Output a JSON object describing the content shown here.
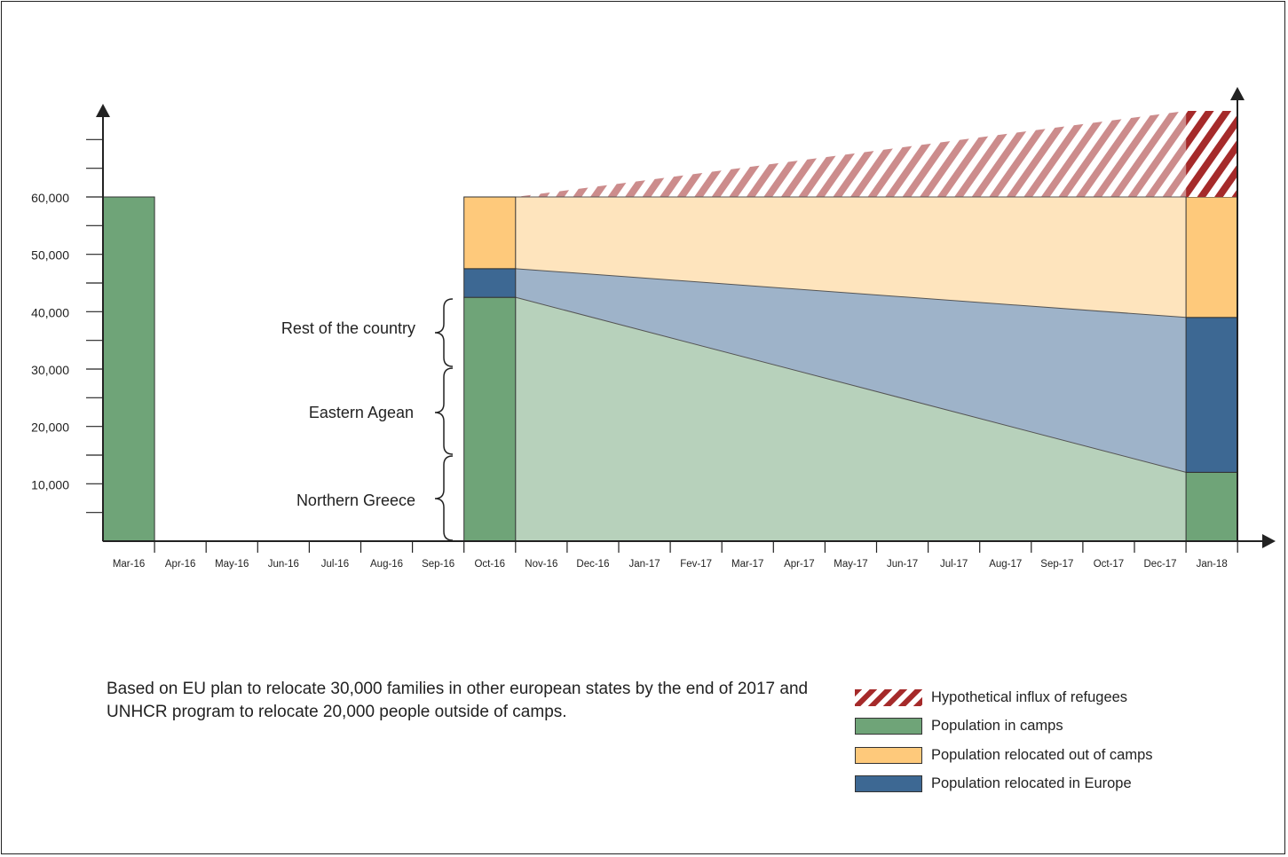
{
  "chart_data": {
    "type": "area",
    "title": "",
    "xlabel": "",
    "ylabel": "",
    "x": [
      "Mar-16",
      "Apr-16",
      "May-16",
      "Jun-16",
      "Jul-16",
      "Aug-16",
      "Sep-16",
      "Oct-16",
      "Nov-16",
      "Dec-16",
      "Jan-17",
      "Fev-17",
      "Mar-17",
      "Apr-17",
      "May-17",
      "Jun-17",
      "Jul-17",
      "Aug-17",
      "Sep-17",
      "Oct-17",
      "Dec-17",
      "Jan-18"
    ],
    "y_ticks": [
      "60,000",
      "50,000",
      "40,000",
      "30,000",
      "20,000",
      "10,000"
    ],
    "y_tick_values": [
      60000,
      50000,
      40000,
      30000,
      20000,
      10000
    ],
    "ylim": [
      0,
      75000
    ],
    "grid": false,
    "regions": [
      {
        "label": "Rest of the country",
        "range": [
          30000,
          42000
        ]
      },
      {
        "label": "Eastern Agean",
        "range": [
          15000,
          30000
        ]
      },
      {
        "label": "Northern Greece",
        "range": [
          0,
          15000
        ]
      }
    ],
    "bars": [
      {
        "x": "Mar-16",
        "in_camps": 60000,
        "relocated_europe": 0,
        "relocated_out_of_camps": 0,
        "influx": 0
      },
      {
        "x": "Oct-16",
        "in_camps": 42500,
        "relocated_europe": 5000,
        "relocated_out_of_camps": 12500,
        "influx": 0
      },
      {
        "x": "Jan-18",
        "in_camps": 12000,
        "relocated_europe": 27000,
        "relocated_out_of_camps": 21000,
        "influx": 15000
      }
    ],
    "series": [
      {
        "name": "Hypothetical influx of refugees",
        "color": "#a52a2a",
        "pattern": "hatch"
      },
      {
        "name": "Population in camps",
        "color": "#6fa478"
      },
      {
        "name": "Population relocated out of camps",
        "color": "#fec97b"
      },
      {
        "name": "Population relocated in Europe",
        "color": "#3d6893"
      }
    ],
    "legend_position": "bottom-right"
  },
  "caption": "Based on EU plan to relocate 30,000 families in other european states by the end of 2017 and UNHCR program to relocate  20,000 people outside of camps."
}
